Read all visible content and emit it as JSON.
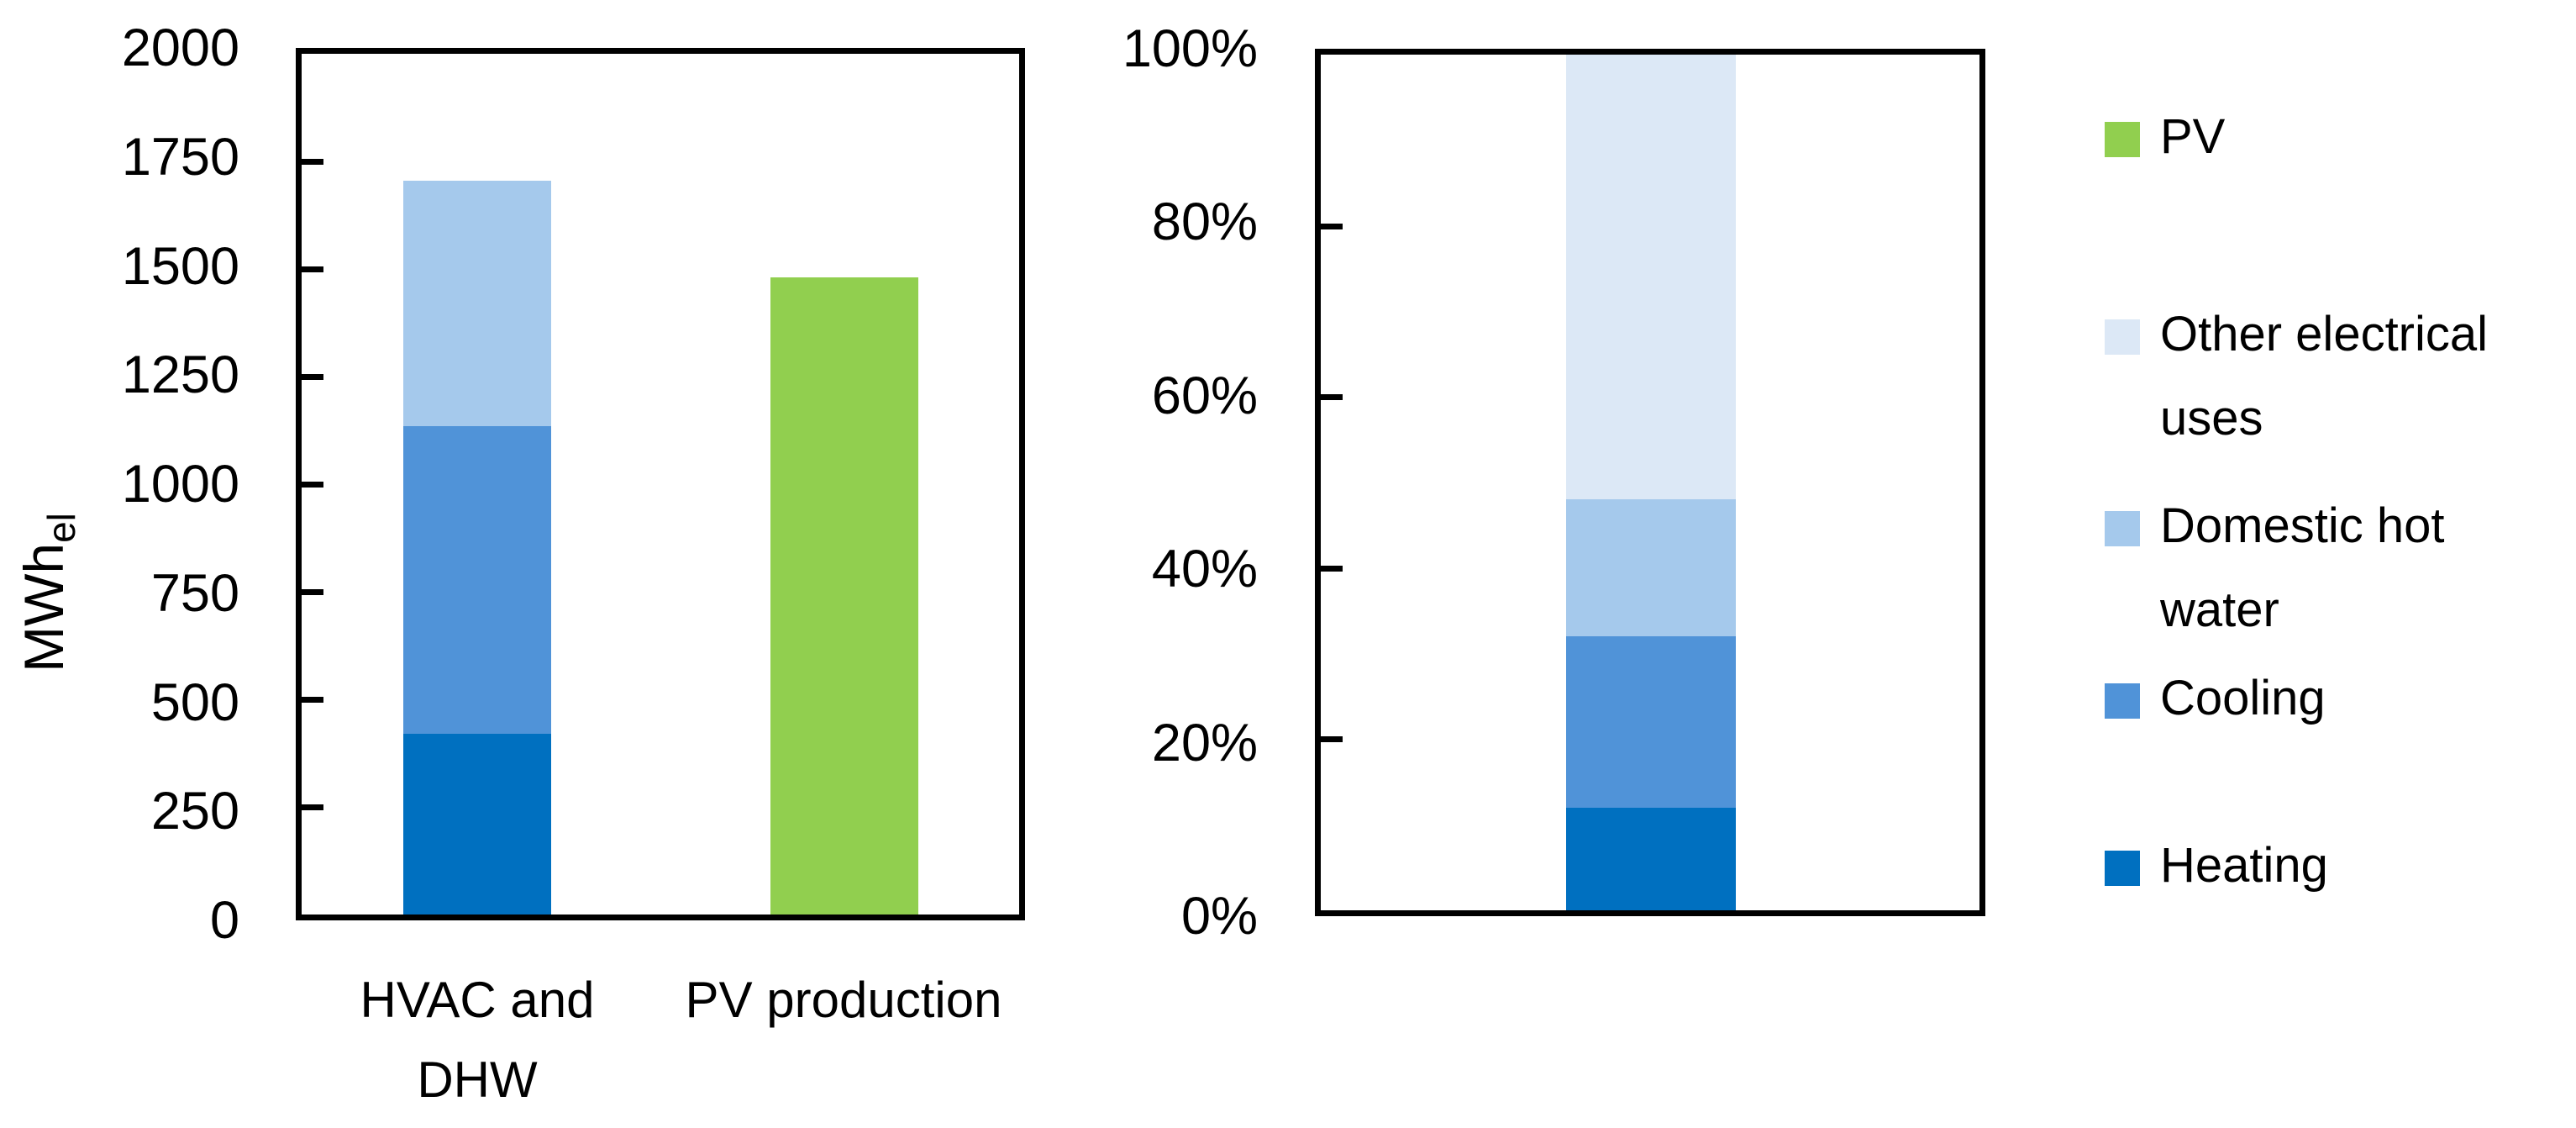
{
  "figure": {
    "background": "#FFFFFF"
  },
  "chart_data": [
    {
      "type": "bar",
      "stacking": "stacked",
      "title": "",
      "ylabel": "MWh",
      "ylabel_sub": "el",
      "xlabel": "",
      "ylim": [
        0,
        2000
      ],
      "ytick_step": 250,
      "ytick_labels": [
        "2000",
        "1750",
        "1500",
        "1250",
        "1000",
        "750",
        "500",
        "250",
        "0"
      ],
      "grid": false,
      "categories": [
        "HVAC and DHW",
        "PV production"
      ],
      "series": [
        {
          "name": "Heating",
          "color": "#0070C0",
          "values": [
            420,
            0
          ]
        },
        {
          "name": "Cooling",
          "color": "#5093D8",
          "values": [
            715,
            0
          ]
        },
        {
          "name": "Domestic hot water",
          "color": "#A5C9EC",
          "values": [
            570,
            0
          ]
        },
        {
          "name": "PV",
          "color": "#91CF4F",
          "values": [
            0,
            1480
          ]
        }
      ],
      "stack_totals": [
        1705,
        1480
      ],
      "units": "MWh electrical"
    },
    {
      "type": "bar",
      "stacking": "percent",
      "title": "",
      "ylabel": "",
      "xlabel": "",
      "ylim": [
        0,
        100
      ],
      "ytick_step": 20,
      "ytick_labels": [
        "100%",
        "80%",
        "60%",
        "40%",
        "20%",
        "0%"
      ],
      "grid": false,
      "categories": [
        ""
      ],
      "series": [
        {
          "name": "Heating",
          "color": "#0070C0",
          "values": [
            12
          ]
        },
        {
          "name": "Cooling",
          "color": "#5093D8",
          "values": [
            20
          ]
        },
        {
          "name": "Domestic hot water",
          "color": "#A5C9EC",
          "values": [
            16
          ]
        },
        {
          "name": "Other electrical uses",
          "color": "#DCE8F6",
          "values": [
            52
          ]
        }
      ]
    }
  ],
  "legend": {
    "position": "right",
    "items": [
      {
        "label": "PV",
        "color": "#91CF4F"
      },
      {
        "label": "Other electrical uses",
        "color": "#DCE8F6"
      },
      {
        "label": "Domestic hot water",
        "color": "#A5C9EC"
      },
      {
        "label": "Cooling",
        "color": "#5093D8"
      },
      {
        "label": "Heating",
        "color": "#0070C0"
      }
    ]
  }
}
